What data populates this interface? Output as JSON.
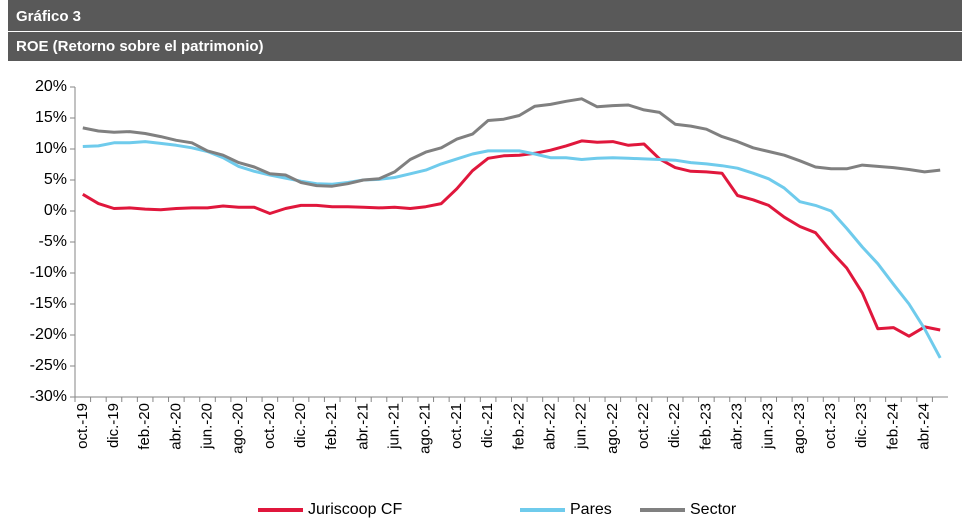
{
  "chart_data": {
    "type": "line",
    "label": "Gráfico 3",
    "title": "ROE (Retorno sobre el patrimonio)",
    "categories": [
      "oct.-19",
      null,
      "dic.-19",
      null,
      "feb.-20",
      null,
      "abr.-20",
      null,
      "jun.-20",
      null,
      "ago.-20",
      null,
      "oct.-20",
      null,
      "dic.-20",
      null,
      "feb.-21",
      null,
      "abr.-21",
      null,
      "jun.-21",
      null,
      "ago.-21",
      null,
      "oct.-21",
      null,
      "dic.-21",
      null,
      "feb.-22",
      null,
      "abr.-22",
      null,
      "jun.-22",
      null,
      "ago.-22",
      null,
      "oct.-22",
      null,
      "dic.-22",
      null,
      "feb.-23",
      null,
      "abr.-23",
      null,
      "jun.-23",
      null,
      "ago.-23",
      null,
      "oct.-23",
      null,
      "dic.-23",
      null,
      "feb.-24",
      null,
      "abr.-24",
      null
    ],
    "series": [
      {
        "name": "Juriscoop CF",
        "color": "#e0173c",
        "values": [
          2.7,
          1.2,
          0.4,
          0.5,
          0.3,
          0.2,
          0.4,
          0.5,
          0.5,
          0.8,
          0.6,
          0.6,
          -0.4,
          0.4,
          0.9,
          0.9,
          0.7,
          0.7,
          0.6,
          0.5,
          0.6,
          0.4,
          0.7,
          1.2,
          3.6,
          6.5,
          8.5,
          8.9,
          9.0,
          9.3,
          9.8,
          10.5,
          11.3,
          11.1,
          11.2,
          10.6,
          10.8,
          8.4,
          7.0,
          6.4,
          6.3,
          6.1,
          2.5,
          1.8,
          0.9,
          -1.0,
          -2.5,
          -3.5,
          -6.5,
          -9.2,
          -13.2,
          -19.0,
          -18.8,
          -20.2,
          -18.7,
          -19.2
        ]
      },
      {
        "name": "Pares",
        "color": "#6fcbec",
        "values": [
          10.4,
          10.5,
          11.0,
          11.0,
          11.2,
          10.9,
          10.6,
          10.2,
          9.6,
          8.6,
          7.2,
          6.4,
          5.8,
          5.3,
          4.8,
          4.4,
          4.3,
          4.6,
          5.0,
          5.1,
          5.4,
          6.0,
          6.6,
          7.6,
          8.4,
          9.2,
          9.7,
          9.7,
          9.7,
          9.2,
          8.6,
          8.6,
          8.3,
          8.5,
          8.6,
          8.5,
          8.4,
          8.3,
          8.2,
          7.8,
          7.6,
          7.3,
          6.9,
          6.1,
          5.2,
          3.7,
          1.5,
          0.9,
          0,
          -2.8,
          -5.8,
          -8.5,
          -11.8,
          -15.0,
          -19.0,
          -23.7
        ]
      },
      {
        "name": "Sector",
        "color": "#808080",
        "values": [
          13.4,
          12.9,
          12.7,
          12.8,
          12.5,
          12.0,
          11.4,
          11.0,
          9.7,
          9.0,
          7.8,
          7.1,
          6.0,
          5.8,
          4.6,
          4.1,
          4.0,
          4.4,
          5.0,
          5.2,
          6.3,
          8.3,
          9.5,
          10.2,
          11.6,
          12.4,
          14.6,
          14.8,
          15.4,
          16.9,
          17.2,
          17.7,
          18.1,
          16.8,
          17.0,
          17.1,
          16.3,
          15.9,
          14.0,
          13.7,
          13.2,
          12.0,
          11.2,
          10.2,
          9.6,
          9.0,
          8.1,
          7.1,
          6.8,
          6.8,
          7.4,
          7.2,
          7.0,
          6.7,
          6.3,
          6.6
        ]
      }
    ],
    "ylim": [
      -30,
      20
    ],
    "yticks": [
      {
        "value": -30,
        "label": "-30%"
      },
      {
        "value": -25,
        "label": "-25%"
      },
      {
        "value": -20,
        "label": "-20%"
      },
      {
        "value": -15,
        "label": "-15%"
      },
      {
        "value": -10,
        "label": "-10%"
      },
      {
        "value": -5,
        "label": "-5%"
      },
      {
        "value": 0,
        "label": "0%"
      },
      {
        "value": 5,
        "label": "5%"
      },
      {
        "value": 10,
        "label": "10%"
      },
      {
        "value": 15,
        "label": "15%"
      },
      {
        "value": 20,
        "label": "20%"
      }
    ],
    "grid": false,
    "legend": "bottom"
  }
}
